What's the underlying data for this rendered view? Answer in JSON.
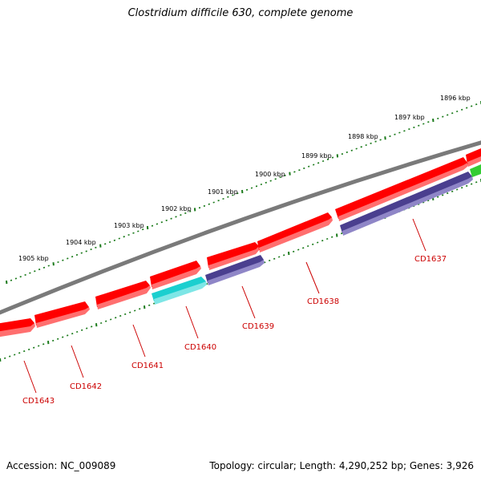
{
  "title": "Clostridium difficile 630, complete genome",
  "footer": {
    "accession": "Accession: NC_009089",
    "summary": "Topology: circular; Length: 4,290,252 bp; Genes: 3,926"
  },
  "colors": {
    "backbone": "#7a7a7a",
    "tick": "#1a7a1a",
    "label_line": "#cc0000",
    "gene_red": "#ff0000",
    "gene_blue": "#4a3f8f",
    "gene_cyan": "#1bcfcf",
    "gene_green": "#33cc33"
  },
  "scale_labels": [
    "1896 kbp",
    "1897 kbp",
    "1898 kbp",
    "1899 kbp",
    "1900 kbp",
    "1901 kbp",
    "1902 kbp",
    "1903 kbp",
    "1904 kbp",
    "1905 kbp"
  ],
  "gene_labels": [
    "CD1637",
    "CD1638",
    "CD1639",
    "CD1640",
    "CD1641",
    "CD1642",
    "CD1643"
  ]
}
